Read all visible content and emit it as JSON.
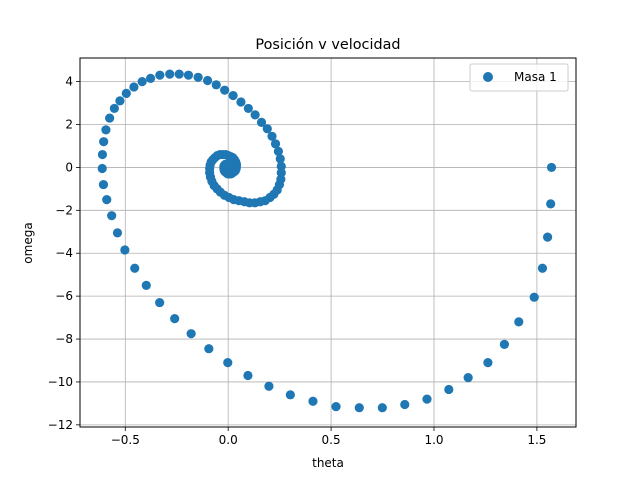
{
  "chart_data": {
    "type": "scatter",
    "title": "Posición v velocidad",
    "xlabel": "theta",
    "ylabel": "omega",
    "xlim": [
      -0.72,
      1.69
    ],
    "ylim": [
      -12.1,
      5.1
    ],
    "xticks": [
      -0.5,
      0.0,
      0.5,
      1.0,
      1.5
    ],
    "xtick_labels": [
      "−0.5",
      "0.0",
      "0.5",
      "1.0",
      "1.5"
    ],
    "yticks": [
      -12,
      -10,
      -8,
      -6,
      -4,
      -2,
      0,
      2,
      4
    ],
    "ytick_labels": [
      "−12",
      "−10",
      "−8",
      "−6",
      "−4",
      "−2",
      "0",
      "2",
      "4"
    ],
    "grid": true,
    "legend_position": "top-right",
    "color": "#1f77b4",
    "series": [
      {
        "name": "Masa 1",
        "points": [
          [
            1.571,
            0.0
          ],
          [
            1.567,
            -1.7
          ],
          [
            1.552,
            -3.25
          ],
          [
            1.527,
            -4.7
          ],
          [
            1.487,
            -6.05
          ],
          [
            1.412,
            -7.2
          ],
          [
            1.342,
            -8.25
          ],
          [
            1.262,
            -9.1
          ],
          [
            1.166,
            -9.8
          ],
          [
            1.072,
            -10.35
          ],
          [
            0.966,
            -10.8
          ],
          [
            0.858,
            -11.05
          ],
          [
            0.749,
            -11.2
          ],
          [
            0.637,
            -11.2
          ],
          [
            0.524,
            -11.15
          ],
          [
            0.412,
            -10.9
          ],
          [
            0.302,
            -10.6
          ],
          [
            0.198,
            -10.2
          ],
          [
            0.096,
            -9.7
          ],
          [
            -0.002,
            -9.1
          ],
          [
            -0.094,
            -8.45
          ],
          [
            -0.18,
            -7.75
          ],
          [
            -0.26,
            -7.05
          ],
          [
            -0.333,
            -6.3
          ],
          [
            -0.398,
            -5.5
          ],
          [
            -0.454,
            -4.7
          ],
          [
            -0.502,
            -3.85
          ],
          [
            -0.538,
            -3.05
          ],
          [
            -0.566,
            -2.25
          ],
          [
            -0.59,
            -1.5
          ],
          [
            -0.606,
            -0.8
          ],
          [
            -0.612,
            -0.05
          ],
          [
            -0.611,
            0.6
          ],
          [
            -0.605,
            1.2
          ],
          [
            -0.594,
            1.75
          ],
          [
            -0.576,
            2.3
          ],
          [
            -0.553,
            2.75
          ],
          [
            -0.526,
            3.1
          ],
          [
            -0.495,
            3.45
          ],
          [
            -0.458,
            3.75
          ],
          [
            -0.418,
            4.0
          ],
          [
            -0.377,
            4.15
          ],
          [
            -0.332,
            4.3
          ],
          [
            -0.284,
            4.35
          ],
          [
            -0.238,
            4.35
          ],
          [
            -0.193,
            4.3
          ],
          [
            -0.146,
            4.2
          ],
          [
            -0.1,
            4.05
          ],
          [
            -0.058,
            3.85
          ],
          [
            -0.017,
            3.6
          ],
          [
            0.024,
            3.35
          ],
          [
            0.062,
            3.05
          ],
          [
            0.098,
            2.75
          ],
          [
            0.131,
            2.45
          ],
          [
            0.162,
            2.1
          ],
          [
            0.19,
            1.8
          ],
          [
            0.213,
            1.45
          ],
          [
            0.23,
            1.1
          ],
          [
            0.244,
            0.75
          ],
          [
            0.253,
            0.4
          ],
          [
            0.258,
            0.05
          ],
          [
            0.258,
            -0.25
          ],
          [
            0.256,
            -0.55
          ],
          [
            0.249,
            -0.8
          ],
          [
            0.238,
            -1.05
          ],
          [
            0.222,
            -1.25
          ],
          [
            0.203,
            -1.4
          ],
          [
            0.18,
            -1.55
          ],
          [
            0.156,
            -1.6
          ],
          [
            0.13,
            -1.65
          ],
          [
            0.104,
            -1.65
          ],
          [
            0.079,
            -1.6
          ],
          [
            0.052,
            -1.55
          ],
          [
            0.027,
            -1.5
          ],
          [
            0.004,
            -1.4
          ],
          [
            -0.018,
            -1.3
          ],
          [
            -0.038,
            -1.15
          ],
          [
            -0.054,
            -1.0
          ],
          [
            -0.068,
            -0.85
          ],
          [
            -0.079,
            -0.65
          ],
          [
            -0.086,
            -0.45
          ],
          [
            -0.09,
            -0.25
          ],
          [
            -0.09,
            -0.05
          ],
          [
            -0.088,
            0.1
          ],
          [
            -0.083,
            0.25
          ],
          [
            -0.075,
            0.35
          ],
          [
            -0.065,
            0.45
          ],
          [
            -0.053,
            0.55
          ],
          [
            -0.04,
            0.6
          ],
          [
            -0.026,
            0.6
          ],
          [
            -0.012,
            0.6
          ],
          [
            0.001,
            0.55
          ],
          [
            0.013,
            0.5
          ],
          [
            0.023,
            0.45
          ],
          [
            0.031,
            0.35
          ],
          [
            0.037,
            0.25
          ],
          [
            0.04,
            0.15
          ],
          [
            0.04,
            0.05
          ],
          [
            0.039,
            -0.05
          ],
          [
            0.035,
            -0.15
          ],
          [
            0.029,
            -0.2
          ],
          [
            0.022,
            -0.25
          ],
          [
            0.014,
            -0.3
          ],
          [
            0.006,
            -0.3
          ],
          [
            -0.002,
            -0.3
          ],
          [
            -0.009,
            -0.25
          ],
          [
            -0.015,
            -0.2
          ],
          [
            -0.019,
            -0.15
          ],
          [
            -0.021,
            -0.05
          ],
          [
            -0.021,
            0.05
          ],
          [
            -0.018,
            0.1
          ],
          [
            -0.013,
            0.15
          ],
          [
            -0.007,
            0.15
          ],
          [
            0.0,
            0.15
          ],
          [
            0.006,
            0.1
          ],
          [
            0.01,
            0.05
          ],
          [
            0.012,
            0.0
          ],
          [
            0.011,
            -0.05
          ],
          [
            0.008,
            -0.1
          ],
          [
            0.004,
            -0.1
          ],
          [
            0.0,
            -0.08
          ],
          [
            -0.004,
            -0.05
          ],
          [
            -0.006,
            0.0
          ]
        ]
      }
    ]
  }
}
